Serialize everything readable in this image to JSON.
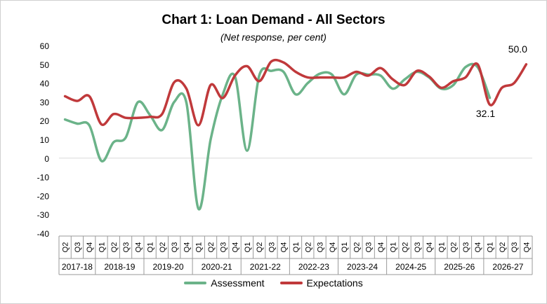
{
  "chart_data": {
    "type": "line",
    "title": "Chart 1: Loan Demand - All Sectors",
    "subtitle": "(Net response, per cent)",
    "xlabel": "",
    "ylabel": "",
    "ylim": [
      -40,
      60
    ],
    "yticks": [
      "60",
      "50",
      "40",
      "30",
      "20",
      "10",
      "0",
      "-10",
      "-20",
      "-30",
      "-40"
    ],
    "quarters": [
      "Q2",
      "Q3",
      "Q4",
      "Q1",
      "Q2",
      "Q3",
      "Q4",
      "Q1",
      "Q2",
      "Q3",
      "Q4",
      "Q1",
      "Q2",
      "Q3",
      "Q4",
      "Q1",
      "Q2",
      "Q3",
      "Q4",
      "Q1",
      "Q2",
      "Q3",
      "Q4",
      "Q1",
      "Q2",
      "Q3",
      "Q4",
      "Q1",
      "Q2",
      "Q3",
      "Q4",
      "Q1",
      "Q2",
      "Q3",
      "Q4",
      "Q1",
      "Q2",
      "Q3",
      "Q4"
    ],
    "years": [
      {
        "label": "2017-18",
        "count": 3
      },
      {
        "label": "2018-19",
        "count": 4
      },
      {
        "label": "2019-20",
        "count": 4
      },
      {
        "label": "2020-21",
        "count": 4
      },
      {
        "label": "2021-22",
        "count": 4
      },
      {
        "label": "2022-23",
        "count": 4
      },
      {
        "label": "2023-24",
        "count": 4
      },
      {
        "label": "2024-25",
        "count": 4
      },
      {
        "label": "2025-26",
        "count": 4
      },
      {
        "label": "2026-27",
        "count": 4
      }
    ],
    "legend_position": "bottom",
    "series": [
      {
        "name": "Assessment",
        "color": "#6bb389",
        "values": [
          20.6,
          18.4,
          17.5,
          -1.5,
          8.5,
          11.0,
          29.8,
          23.0,
          15.0,
          30.0,
          29.5,
          -27.0,
          10.0,
          34.0,
          43.5,
          4.0,
          44.0,
          46.5,
          46.0,
          34.0,
          40.0,
          45.0,
          44.5,
          34.0,
          44.5,
          44.5,
          44.0,
          37.0,
          42.0,
          46.0,
          43.0,
          37.0,
          39.0,
          48.5,
          48.5,
          32.1,
          null,
          null,
          null
        ]
      },
      {
        "name": "Expectations",
        "color": "#c0393b",
        "values": [
          33.0,
          30.5,
          33.0,
          18.0,
          23.5,
          21.5,
          21.5,
          22.0,
          23.5,
          40.5,
          37.0,
          17.5,
          39.0,
          32.0,
          44.0,
          49.0,
          41.0,
          51.5,
          51.0,
          46.0,
          43.0,
          43.0,
          43.0,
          43.0,
          46.0,
          44.0,
          48.0,
          42.0,
          39.0,
          46.5,
          43.5,
          37.5,
          41.0,
          43.0,
          50.0,
          28.5,
          37.5,
          40.0,
          50.0
        ]
      }
    ],
    "annotations": [
      {
        "text": "32.1",
        "series": 0,
        "index": 35,
        "color": "#3aa655"
      },
      {
        "text": "50.0",
        "series": 1,
        "index": 38,
        "color": "#c0393b"
      }
    ]
  }
}
